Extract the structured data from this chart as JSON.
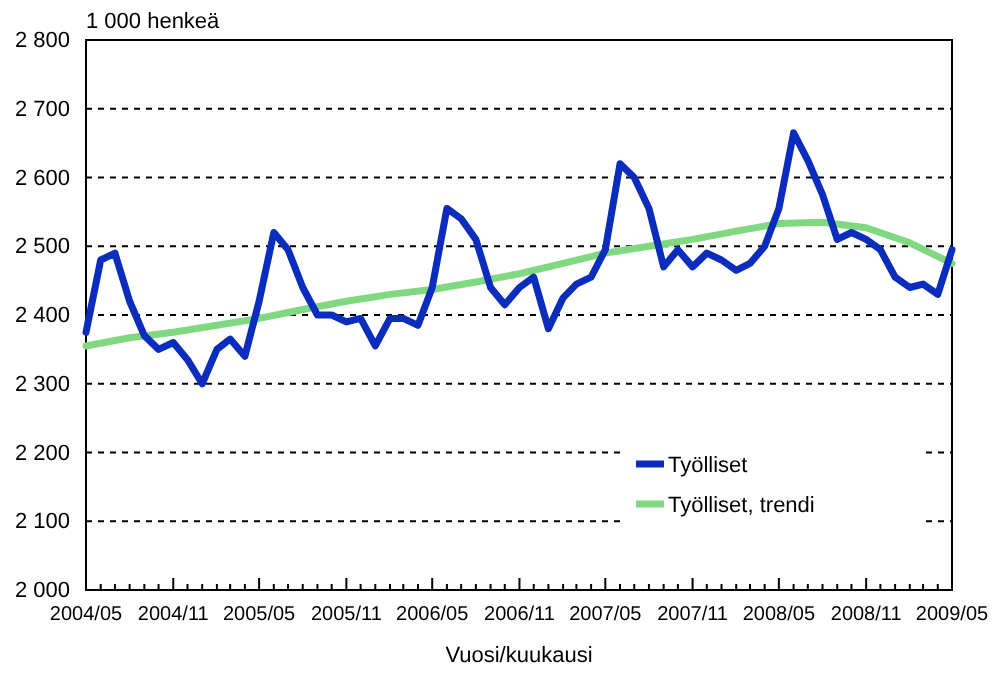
{
  "chart_data": {
    "type": "line",
    "ylabel": "1 000 henkeä",
    "xlabel": "Vuosi/kuukausi",
    "x": [
      "2004-05",
      "2004-06",
      "2004-07",
      "2004-08",
      "2004-09",
      "2004-10",
      "2004-11",
      "2004-12",
      "2005-01",
      "2005-02",
      "2005-03",
      "2005-04",
      "2005-05",
      "2005-06",
      "2005-07",
      "2005-08",
      "2005-09",
      "2005-10",
      "2005-11",
      "2005-12",
      "2006-01",
      "2006-02",
      "2006-03",
      "2006-04",
      "2006-05",
      "2006-06",
      "2006-07",
      "2006-08",
      "2006-09",
      "2006-10",
      "2006-11",
      "2006-12",
      "2007-01",
      "2007-02",
      "2007-03",
      "2007-04",
      "2007-05",
      "2007-06",
      "2007-07",
      "2007-08",
      "2007-09",
      "2007-10",
      "2007-11",
      "2007-12",
      "2008-01",
      "2008-02",
      "2008-03",
      "2008-04",
      "2008-05",
      "2008-06",
      "2008-07",
      "2008-08",
      "2008-09",
      "2008-10",
      "2008-11",
      "2008-12",
      "2009-01",
      "2009-02",
      "2009-03",
      "2009-04",
      "2009-05"
    ],
    "series": [
      {
        "name": "Työlliset, trendi",
        "color": "#80d880",
        "x": [
          "2004-05",
          "2004-08",
          "2004-11",
          "2005-02",
          "2005-05",
          "2005-08",
          "2005-11",
          "2006-02",
          "2006-05",
          "2006-08",
          "2006-11",
          "2007-02",
          "2007-05",
          "2007-08",
          "2007-11",
          "2008-02",
          "2008-05",
          "2008-08",
          "2008-11",
          "2009-02",
          "2009-05"
        ],
        "values": [
          2355,
          2367,
          2375,
          2385,
          2395,
          2408,
          2420,
          2430,
          2437,
          2448,
          2460,
          2475,
          2490,
          2500,
          2510,
          2522,
          2533,
          2535,
          2527,
          2505,
          2475
        ]
      },
      {
        "name": "Työlliset",
        "color": "#0a2dbe",
        "values": [
          2375,
          2480,
          2490,
          2420,
          2370,
          2350,
          2360,
          2335,
          2300,
          2350,
          2365,
          2340,
          2420,
          2520,
          2495,
          2440,
          2400,
          2400,
          2390,
          2395,
          2355,
          2395,
          2395,
          2385,
          2440,
          2555,
          2540,
          2510,
          2440,
          2415,
          2440,
          2455,
          2380,
          2425,
          2445,
          2455,
          2495,
          2620,
          2600,
          2555,
          2470,
          2495,
          2470,
          2490,
          2480,
          2465,
          2475,
          2500,
          2555,
          2665,
          2625,
          2575,
          2510,
          2520,
          2510,
          2495,
          2455,
          2440,
          2445,
          2430,
          2495
        ]
      }
    ],
    "xlim": [
      "2004-05",
      "2009-05"
    ],
    "xticks": [
      {
        "value": "2004-05",
        "label": "2004/05"
      },
      {
        "value": "2004-06",
        "label": null
      },
      {
        "value": "2004-07",
        "label": null
      },
      {
        "value": "2004-08",
        "label": null
      },
      {
        "value": "2004-09",
        "label": null
      },
      {
        "value": "2004-10",
        "label": null
      },
      {
        "value": "2004-11",
        "label": "2004/11"
      },
      {
        "value": "2004-12",
        "label": null
      },
      {
        "value": "2005-01",
        "label": null
      },
      {
        "value": "2005-02",
        "label": null
      },
      {
        "value": "2005-03",
        "label": null
      },
      {
        "value": "2005-04",
        "label": null
      },
      {
        "value": "2005-05",
        "label": "2005/05"
      },
      {
        "value": "2005-06",
        "label": null
      },
      {
        "value": "2005-07",
        "label": null
      },
      {
        "value": "2005-08",
        "label": null
      },
      {
        "value": "2005-09",
        "label": null
      },
      {
        "value": "2005-10",
        "label": null
      },
      {
        "value": "2005-11",
        "label": "2005/11"
      },
      {
        "value": "2005-12",
        "label": null
      },
      {
        "value": "2006-01",
        "label": null
      },
      {
        "value": "2006-02",
        "label": null
      },
      {
        "value": "2006-03",
        "label": null
      },
      {
        "value": "2006-04",
        "label": null
      },
      {
        "value": "2006-05",
        "label": "2006/05"
      },
      {
        "value": "2006-06",
        "label": null
      },
      {
        "value": "2006-07",
        "label": null
      },
      {
        "value": "2006-08",
        "label": null
      },
      {
        "value": "2006-09",
        "label": null
      },
      {
        "value": "2006-10",
        "label": null
      },
      {
        "value": "2006-11",
        "label": "2006/11"
      },
      {
        "value": "2006-12",
        "label": null
      },
      {
        "value": "2007-01",
        "label": null
      },
      {
        "value": "2007-02",
        "label": null
      },
      {
        "value": "2007-03",
        "label": null
      },
      {
        "value": "2007-04",
        "label": null
      },
      {
        "value": "2007-05",
        "label": "2007/05"
      },
      {
        "value": "2007-06",
        "label": null
      },
      {
        "value": "2007-07",
        "label": null
      },
      {
        "value": "2007-08",
        "label": null
      },
      {
        "value": "2007-09",
        "label": null
      },
      {
        "value": "2007-10",
        "label": null
      },
      {
        "value": "2007-11",
        "label": "2007/11"
      },
      {
        "value": "2007-12",
        "label": null
      },
      {
        "value": "2008-01",
        "label": null
      },
      {
        "value": "2008-02",
        "label": null
      },
      {
        "value": "2008-03",
        "label": null
      },
      {
        "value": "2008-04",
        "label": null
      },
      {
        "value": "2008-05",
        "label": "2008/05"
      },
      {
        "value": "2008-06",
        "label": null
      },
      {
        "value": "2008-07",
        "label": null
      },
      {
        "value": "2008-08",
        "label": null
      },
      {
        "value": "2008-09",
        "label": null
      },
      {
        "value": "2008-10",
        "label": null
      },
      {
        "value": "2008-11",
        "label": "2008/11"
      },
      {
        "value": "2008-12",
        "label": null
      },
      {
        "value": "2009-01",
        "label": null
      },
      {
        "value": "2009-02",
        "label": null
      },
      {
        "value": "2009-03",
        "label": null
      },
      {
        "value": "2009-04",
        "label": null
      },
      {
        "value": "2009-05",
        "label": "2009/05"
      }
    ],
    "ylim": [
      2000,
      2800
    ],
    "yticks": [
      {
        "value": 2000,
        "label": "2 000"
      },
      {
        "value": 2100,
        "label": "2 100"
      },
      {
        "value": 2200,
        "label": "2 200"
      },
      {
        "value": 2300,
        "label": "2 300"
      },
      {
        "value": 2400,
        "label": "2 400"
      },
      {
        "value": 2500,
        "label": "2 500"
      },
      {
        "value": 2600,
        "label": "2 600"
      },
      {
        "value": 2700,
        "label": "2 700"
      },
      {
        "value": 2800,
        "label": "2 800"
      }
    ],
    "grid": "y",
    "legend": "bottom right",
    "line_style": "solid",
    "marker": "none"
  }
}
